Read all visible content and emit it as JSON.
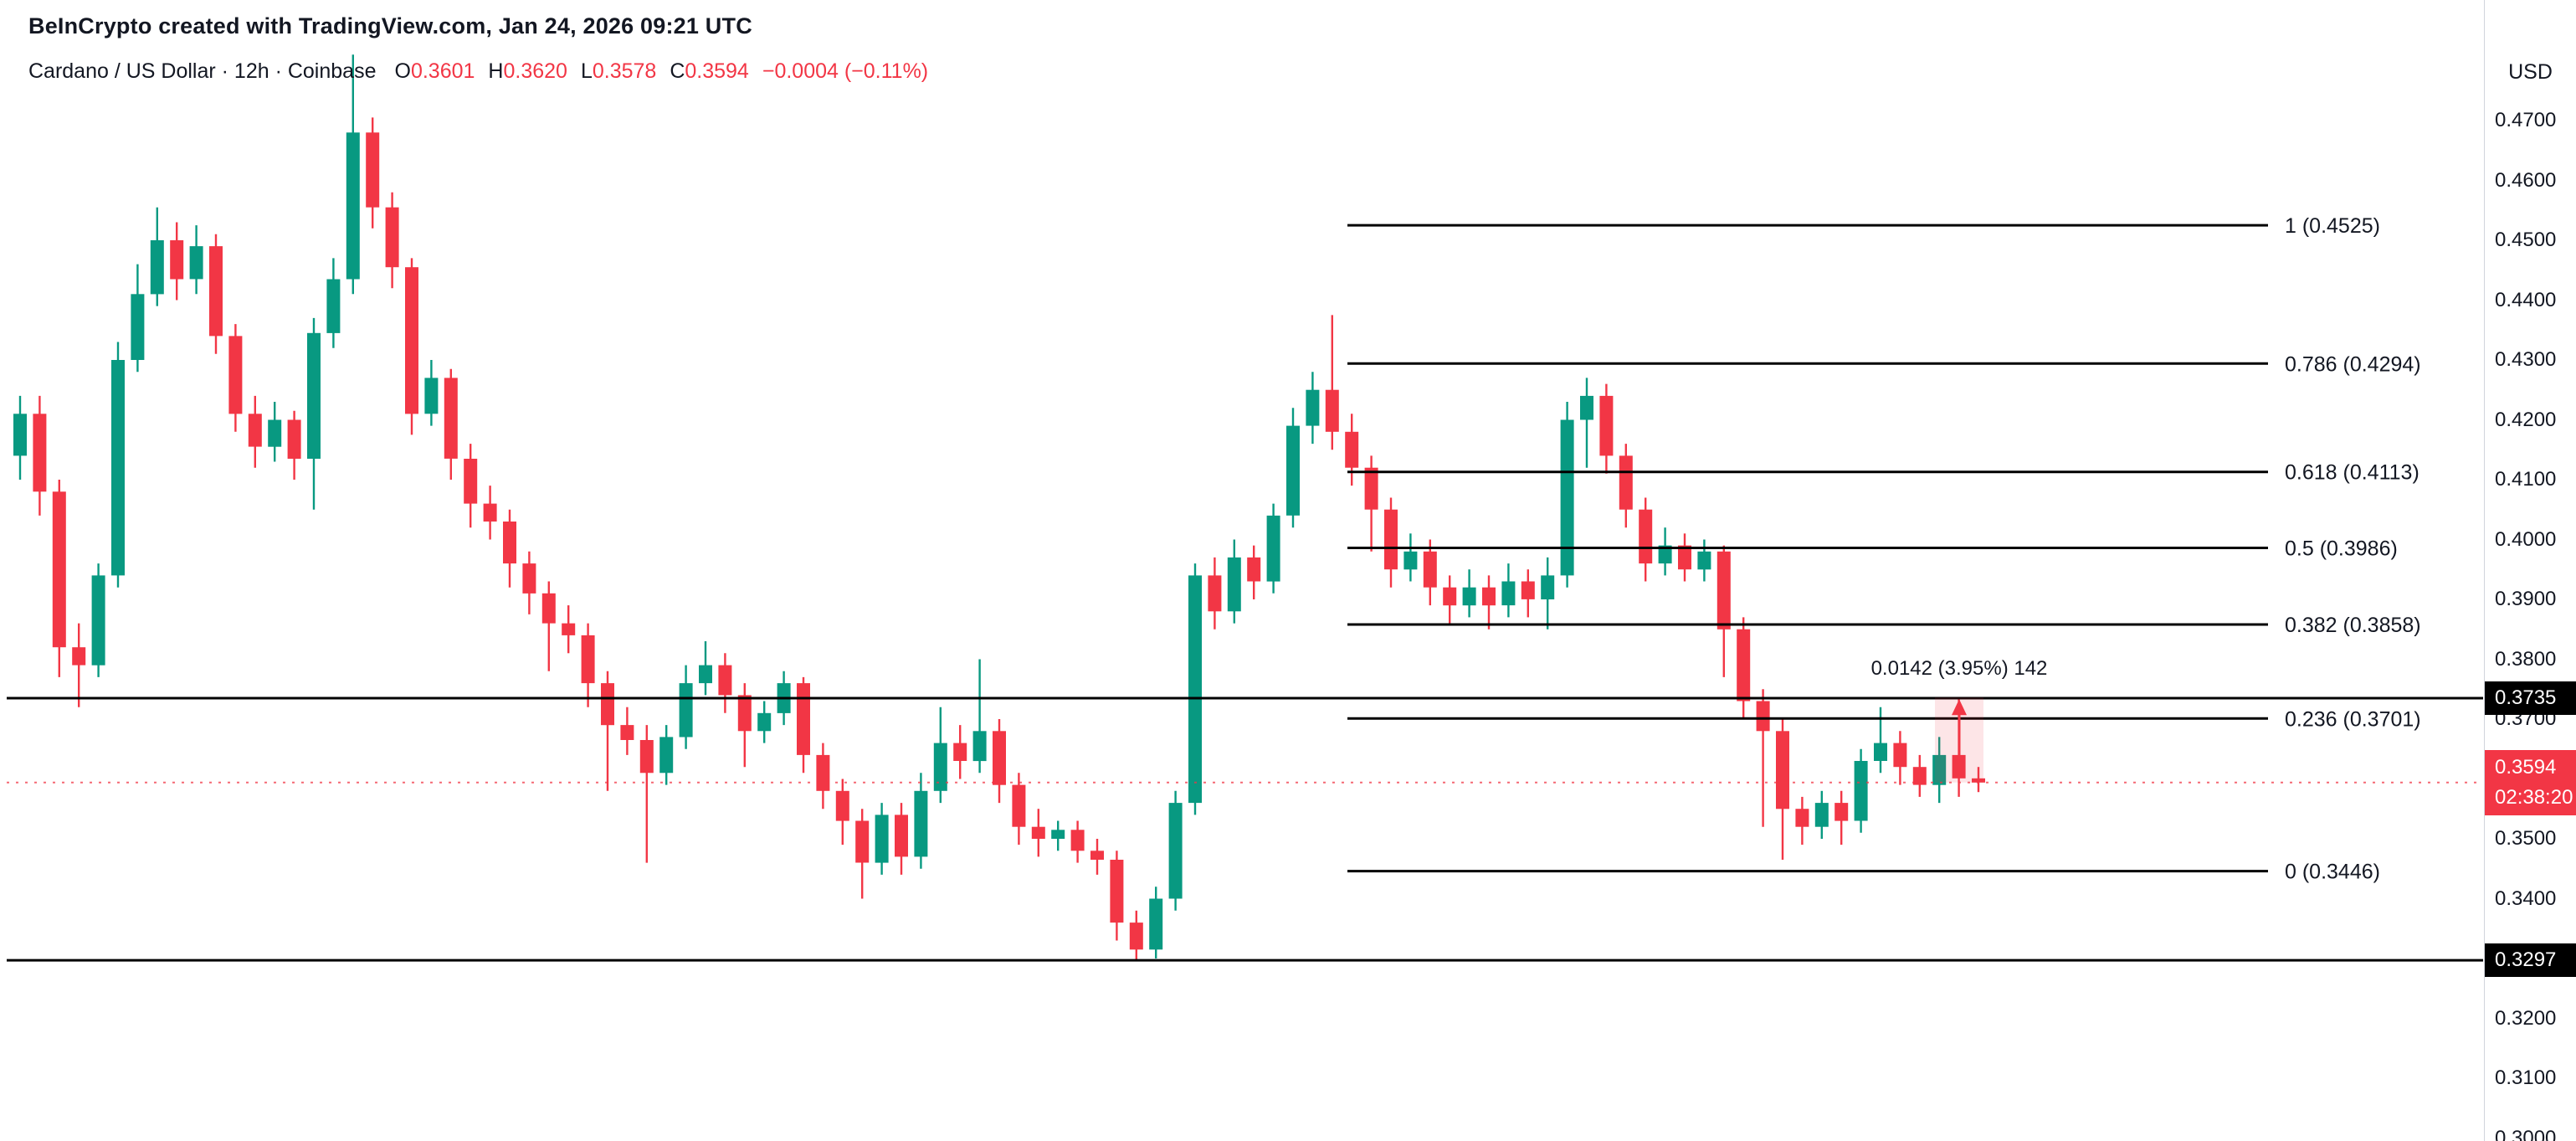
{
  "header": {
    "title": "BeInCrypto created with TradingView.com, Jan 24, 2026 09:21 UTC",
    "symbol": "Cardano / US Dollar · 12h · Coinbase",
    "ohlc": {
      "o_label": "O",
      "o_value": "0.3601",
      "h_label": "H",
      "h_value": "0.3620",
      "l_label": "L",
      "l_value": "0.3578",
      "c_label": "C",
      "c_value": "0.3594",
      "change": "−0.0004 (−0.11%)"
    }
  },
  "price_scale": {
    "currency_label": "USD",
    "ticks": [
      "0.4700",
      "0.4600",
      "0.4500",
      "0.4400",
      "0.4300",
      "0.4200",
      "0.4100",
      "0.4000",
      "0.3900",
      "0.3800",
      "0.3700",
      "0.3500",
      "0.3400",
      "0.3200",
      "0.3100",
      "0.3000"
    ],
    "badges": [
      {
        "type": "level",
        "label": "0.3735",
        "value": 0.3735
      },
      {
        "type": "level",
        "label": "0.3297",
        "value": 0.3297
      },
      {
        "type": "last",
        "label": "0.3594",
        "countdown": "02:38:20",
        "value": 0.3594
      }
    ]
  },
  "chart_data": {
    "type": "candlestick",
    "title": "Cardano / US Dollar",
    "timeframe": "12h",
    "exchange": "Coinbase",
    "unit": "USD",
    "ylim": [
      0.3015,
      0.4885
    ],
    "grid": false,
    "legend_position": "none",
    "candles": [
      [
        0.414,
        0.424,
        0.41,
        0.421
      ],
      [
        0.421,
        0.424,
        0.404,
        0.408
      ],
      [
        0.408,
        0.41,
        0.377,
        0.382
      ],
      [
        0.382,
        0.386,
        0.372,
        0.379
      ],
      [
        0.379,
        0.396,
        0.377,
        0.394
      ],
      [
        0.394,
        0.433,
        0.392,
        0.43
      ],
      [
        0.43,
        0.446,
        0.428,
        0.441
      ],
      [
        0.441,
        0.4555,
        0.439,
        0.45
      ],
      [
        0.45,
        0.453,
        0.44,
        0.4435
      ],
      [
        0.4435,
        0.4525,
        0.441,
        0.449
      ],
      [
        0.449,
        0.451,
        0.431,
        0.434
      ],
      [
        0.434,
        0.436,
        0.418,
        0.421
      ],
      [
        0.421,
        0.424,
        0.412,
        0.4155
      ],
      [
        0.4155,
        0.423,
        0.413,
        0.42
      ],
      [
        0.42,
        0.4215,
        0.41,
        0.4135
      ],
      [
        0.4135,
        0.437,
        0.405,
        0.4345
      ],
      [
        0.4345,
        0.447,
        0.432,
        0.4435
      ],
      [
        0.4435,
        0.481,
        0.441,
        0.468
      ],
      [
        0.468,
        0.4705,
        0.452,
        0.4555
      ],
      [
        0.4555,
        0.458,
        0.442,
        0.4455
      ],
      [
        0.4455,
        0.447,
        0.4175,
        0.421
      ],
      [
        0.421,
        0.43,
        0.419,
        0.427
      ],
      [
        0.427,
        0.4285,
        0.41,
        0.4135
      ],
      [
        0.4135,
        0.416,
        0.402,
        0.406
      ],
      [
        0.406,
        0.409,
        0.4,
        0.403
      ],
      [
        0.403,
        0.405,
        0.392,
        0.396
      ],
      [
        0.396,
        0.398,
        0.3875,
        0.391
      ],
      [
        0.391,
        0.393,
        0.378,
        0.386
      ],
      [
        0.386,
        0.389,
        0.381,
        0.384
      ],
      [
        0.384,
        0.386,
        0.372,
        0.376
      ],
      [
        0.376,
        0.378,
        0.358,
        0.369
      ],
      [
        0.369,
        0.372,
        0.364,
        0.3665
      ],
      [
        0.3665,
        0.369,
        0.346,
        0.361
      ],
      [
        0.361,
        0.369,
        0.359,
        0.367
      ],
      [
        0.367,
        0.379,
        0.365,
        0.376
      ],
      [
        0.376,
        0.383,
        0.374,
        0.379
      ],
      [
        0.379,
        0.381,
        0.371,
        0.374
      ],
      [
        0.374,
        0.376,
        0.362,
        0.368
      ],
      [
        0.368,
        0.373,
        0.366,
        0.371
      ],
      [
        0.371,
        0.378,
        0.369,
        0.376
      ],
      [
        0.376,
        0.377,
        0.361,
        0.364
      ],
      [
        0.364,
        0.366,
        0.355,
        0.358
      ],
      [
        0.358,
        0.36,
        0.349,
        0.353
      ],
      [
        0.353,
        0.355,
        0.34,
        0.346
      ],
      [
        0.346,
        0.356,
        0.344,
        0.354
      ],
      [
        0.354,
        0.356,
        0.344,
        0.347
      ],
      [
        0.347,
        0.361,
        0.345,
        0.358
      ],
      [
        0.358,
        0.372,
        0.356,
        0.366
      ],
      [
        0.366,
        0.369,
        0.36,
        0.363
      ],
      [
        0.363,
        0.38,
        0.361,
        0.368
      ],
      [
        0.368,
        0.37,
        0.356,
        0.359
      ],
      [
        0.359,
        0.361,
        0.349,
        0.352
      ],
      [
        0.352,
        0.355,
        0.347,
        0.35
      ],
      [
        0.35,
        0.353,
        0.348,
        0.3515
      ],
      [
        0.3515,
        0.353,
        0.346,
        0.348
      ],
      [
        0.348,
        0.35,
        0.344,
        0.3465
      ],
      [
        0.3465,
        0.348,
        0.333,
        0.336
      ],
      [
        0.336,
        0.338,
        0.3297,
        0.3315
      ],
      [
        0.3315,
        0.342,
        0.33,
        0.34
      ],
      [
        0.34,
        0.358,
        0.338,
        0.356
      ],
      [
        0.356,
        0.396,
        0.354,
        0.394
      ],
      [
        0.394,
        0.397,
        0.385,
        0.388
      ],
      [
        0.388,
        0.4,
        0.386,
        0.397
      ],
      [
        0.397,
        0.399,
        0.39,
        0.393
      ],
      [
        0.393,
        0.406,
        0.391,
        0.404
      ],
      [
        0.404,
        0.422,
        0.402,
        0.419
      ],
      [
        0.419,
        0.428,
        0.416,
        0.425
      ],
      [
        0.425,
        0.4375,
        0.415,
        0.418
      ],
      [
        0.418,
        0.421,
        0.409,
        0.412
      ],
      [
        0.412,
        0.414,
        0.398,
        0.405
      ],
      [
        0.405,
        0.407,
        0.392,
        0.395
      ],
      [
        0.395,
        0.401,
        0.393,
        0.398
      ],
      [
        0.398,
        0.4,
        0.389,
        0.392
      ],
      [
        0.392,
        0.394,
        0.386,
        0.389
      ],
      [
        0.389,
        0.395,
        0.387,
        0.392
      ],
      [
        0.392,
        0.394,
        0.385,
        0.389
      ],
      [
        0.389,
        0.396,
        0.387,
        0.393
      ],
      [
        0.393,
        0.395,
        0.387,
        0.39
      ],
      [
        0.39,
        0.397,
        0.385,
        0.394
      ],
      [
        0.394,
        0.423,
        0.392,
        0.42
      ],
      [
        0.42,
        0.427,
        0.412,
        0.424
      ],
      [
        0.424,
        0.426,
        0.411,
        0.414
      ],
      [
        0.414,
        0.416,
        0.402,
        0.405
      ],
      [
        0.405,
        0.407,
        0.393,
        0.396
      ],
      [
        0.396,
        0.402,
        0.394,
        0.399
      ],
      [
        0.399,
        0.401,
        0.393,
        0.395
      ],
      [
        0.395,
        0.4,
        0.393,
        0.398
      ],
      [
        0.398,
        0.399,
        0.377,
        0.385
      ],
      [
        0.385,
        0.387,
        0.37,
        0.373
      ],
      [
        0.373,
        0.375,
        0.352,
        0.368
      ],
      [
        0.368,
        0.37,
        0.3465,
        0.355
      ],
      [
        0.355,
        0.357,
        0.349,
        0.352
      ],
      [
        0.352,
        0.358,
        0.35,
        0.356
      ],
      [
        0.356,
        0.358,
        0.349,
        0.353
      ],
      [
        0.353,
        0.365,
        0.351,
        0.363
      ],
      [
        0.363,
        0.372,
        0.361,
        0.366
      ],
      [
        0.366,
        0.368,
        0.359,
        0.362
      ],
      [
        0.362,
        0.364,
        0.357,
        0.359
      ],
      [
        0.359,
        0.367,
        0.356,
        0.364
      ],
      [
        0.364,
        0.3735,
        0.357,
        0.3601
      ],
      [
        0.3601,
        0.362,
        0.3578,
        0.3594
      ]
    ],
    "fib_levels": [
      {
        "label": "1 (0.4525)",
        "value": 0.4525
      },
      {
        "label": "0.786 (0.4294)",
        "value": 0.4294
      },
      {
        "label": "0.618 (0.4113)",
        "value": 0.4113
      },
      {
        "label": "0.5 (0.3986)",
        "value": 0.3986
      },
      {
        "label": "0.382 (0.3858)",
        "value": 0.3858
      },
      {
        "label": "0.236 (0.3701)",
        "value": 0.3701
      },
      {
        "label": "0 (0.3446)",
        "value": 0.3446
      }
    ],
    "support_lines": [
      {
        "label": "0.3735",
        "value": 0.3735
      },
      {
        "label": "0.3297",
        "value": 0.3297
      }
    ],
    "last_price": {
      "value": 0.3594,
      "countdown": "02:38:20",
      "direction": "down"
    },
    "measurement": {
      "text": "0.0142 (3.95%) 142",
      "from": 0.3594,
      "to": 0.3736
    }
  },
  "colors": {
    "up": "#089981",
    "down": "#f23645",
    "text": "#131722",
    "line_black": "#000000",
    "badge_black_bg": "#000000",
    "measure_fill": "rgba(242,54,69,0.13)",
    "axis_border": "#d1d4dc"
  }
}
